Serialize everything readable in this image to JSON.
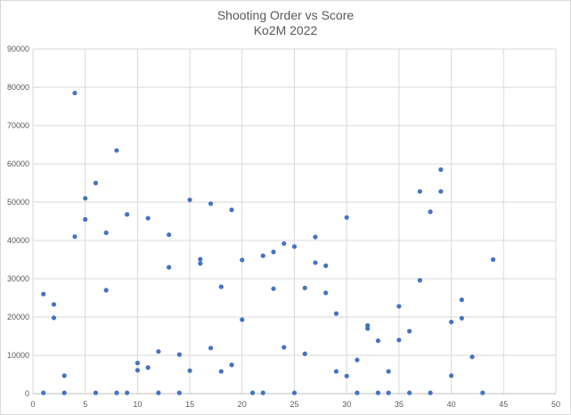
{
  "chart_data": {
    "type": "scatter",
    "title": "Shooting  Order vs Score",
    "subtitle": "Ko2M 2022",
    "xlabel": "",
    "ylabel": "",
    "xlim": [
      0,
      50
    ],
    "ylim": [
      0,
      90000
    ],
    "x_ticks": [
      "0",
      "5",
      "10",
      "15",
      "20",
      "25",
      "30",
      "35",
      "40",
      "45",
      "50"
    ],
    "y_ticks": [
      "0",
      "10000",
      "20000",
      "30000",
      "40000",
      "50000",
      "60000",
      "70000",
      "80000",
      "90000"
    ],
    "x_gridlines": true,
    "y_gridlines": true,
    "legend": "none",
    "marker_color": "#4472c4",
    "grid_color": "#d9d9d9",
    "series": [
      {
        "points": [
          [
            1,
            26000
          ],
          [
            1,
            200
          ],
          [
            2,
            23300
          ],
          [
            2,
            19800
          ],
          [
            3,
            4700
          ],
          [
            3,
            200
          ],
          [
            4,
            78500
          ],
          [
            4,
            41000
          ],
          [
            5,
            51000
          ],
          [
            5,
            45500
          ],
          [
            6,
            55000
          ],
          [
            6,
            200
          ],
          [
            7,
            42000
          ],
          [
            7,
            27000
          ],
          [
            8,
            63500
          ],
          [
            8,
            200
          ],
          [
            9,
            46800
          ],
          [
            9,
            200
          ],
          [
            10,
            8000
          ],
          [
            10,
            6100
          ],
          [
            11,
            45800
          ],
          [
            11,
            6800
          ],
          [
            12,
            11000
          ],
          [
            12,
            200
          ],
          [
            13,
            41500
          ],
          [
            13,
            33000
          ],
          [
            14,
            10200
          ],
          [
            14,
            200
          ],
          [
            15,
            50600
          ],
          [
            15,
            6000
          ],
          [
            16,
            35100
          ],
          [
            16,
            34000
          ],
          [
            17,
            49600
          ],
          [
            17,
            11900
          ],
          [
            18,
            27900
          ],
          [
            18,
            5800
          ],
          [
            19,
            48000
          ],
          [
            19,
            7500
          ],
          [
            20,
            34900
          ],
          [
            20,
            19300
          ],
          [
            21,
            200
          ],
          [
            22,
            36000
          ],
          [
            22,
            200
          ],
          [
            23,
            37000
          ],
          [
            23,
            27400
          ],
          [
            24,
            39200
          ],
          [
            24,
            12100
          ],
          [
            25,
            38400
          ],
          [
            25,
            200
          ],
          [
            26,
            27600
          ],
          [
            26,
            10400
          ],
          [
            27,
            40900
          ],
          [
            27,
            34200
          ],
          [
            28,
            33400
          ],
          [
            28,
            26300
          ],
          [
            29,
            20900
          ],
          [
            29,
            5800
          ],
          [
            30,
            46000
          ],
          [
            30,
            4600
          ],
          [
            31,
            8800
          ],
          [
            31,
            200
          ],
          [
            32,
            17800
          ],
          [
            32,
            17000
          ],
          [
            33,
            13800
          ],
          [
            33,
            200
          ],
          [
            34,
            5800
          ],
          [
            34,
            200
          ],
          [
            35,
            22800
          ],
          [
            35,
            14000
          ],
          [
            36,
            16300
          ],
          [
            36,
            200
          ],
          [
            37,
            52800
          ],
          [
            37,
            29600
          ],
          [
            38,
            47500
          ],
          [
            38,
            200
          ],
          [
            39,
            58500
          ],
          [
            39,
            52800
          ],
          [
            40,
            18700
          ],
          [
            40,
            4700
          ],
          [
            41,
            24500
          ],
          [
            41,
            19700
          ],
          [
            42,
            9600
          ],
          [
            43,
            200
          ],
          [
            44,
            35000
          ]
        ]
      }
    ]
  }
}
